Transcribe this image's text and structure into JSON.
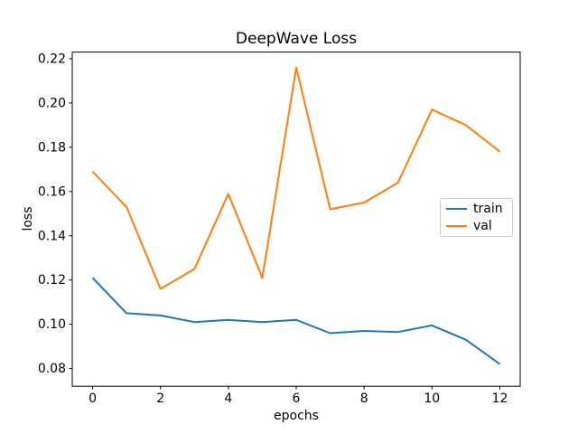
{
  "figure": {
    "background": "#ffffff"
  },
  "chart_data": {
    "type": "line",
    "title": "DeepWave Loss",
    "xlabel": "epochs",
    "ylabel": "loss",
    "x": [
      0,
      1,
      2,
      3,
      4,
      5,
      6,
      7,
      8,
      9,
      10,
      11,
      12
    ],
    "series": [
      {
        "name": "train",
        "color": "#1f77b4",
        "values": [
          0.121,
          0.105,
          0.104,
          0.101,
          0.102,
          0.101,
          0.102,
          0.096,
          0.097,
          0.0965,
          0.0995,
          0.093,
          0.082
        ]
      },
      {
        "name": "val",
        "color": "#ff7f0e",
        "values": [
          0.169,
          0.153,
          0.116,
          0.125,
          0.159,
          0.121,
          0.216,
          0.152,
          0.155,
          0.164,
          0.197,
          0.19,
          0.178
        ]
      }
    ],
    "xlim": [
      -0.6,
      12.6
    ],
    "ylim": [
      0.072,
      0.223
    ],
    "xticks": [
      0,
      2,
      4,
      6,
      8,
      10,
      12
    ],
    "yticks": [
      0.08,
      0.1,
      0.12,
      0.14,
      0.16,
      0.18,
      0.2,
      0.22
    ],
    "grid": false,
    "legend_position": "center right",
    "axis_color": "#000000",
    "tick_label_color": "#000000"
  }
}
